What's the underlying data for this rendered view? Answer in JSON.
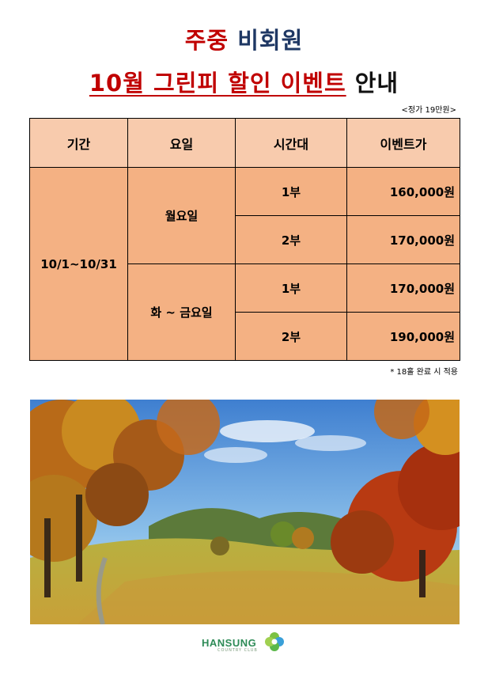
{
  "header": {
    "line1_part1": "주중",
    "line1_part2": "비회원",
    "line2_part1": "10월 그린피 할인 이벤트",
    "line2_part2": "안내",
    "regular_price": "<정가 19만원>"
  },
  "table": {
    "headers": [
      "기간",
      "요일",
      "시간대",
      "이벤트가"
    ],
    "period": "10/1~10/31",
    "groups": [
      {
        "day": "월요일",
        "rows": [
          {
            "time": "1부",
            "price": "160,000원"
          },
          {
            "time": "2부",
            "price": "170,000원"
          }
        ]
      },
      {
        "day": "화 ~ 금요일",
        "rows": [
          {
            "time": "1부",
            "price": "170,000원"
          },
          {
            "time": "2부",
            "price": "190,000원"
          }
        ]
      }
    ]
  },
  "note": "* 18홀 완료 시 적용",
  "logo": {
    "name": "HANSUNG",
    "sub": "COUNTRY CLUB"
  },
  "colors": {
    "title_red": "#c00000",
    "title_navy": "#1f3864",
    "header_bg": "#f8cbad",
    "cell_bg": "#f4b183",
    "price_yellow": "#ffff00",
    "price_red": "#ff0000"
  },
  "photo": {
    "subject": "autumn golf course landscape"
  }
}
